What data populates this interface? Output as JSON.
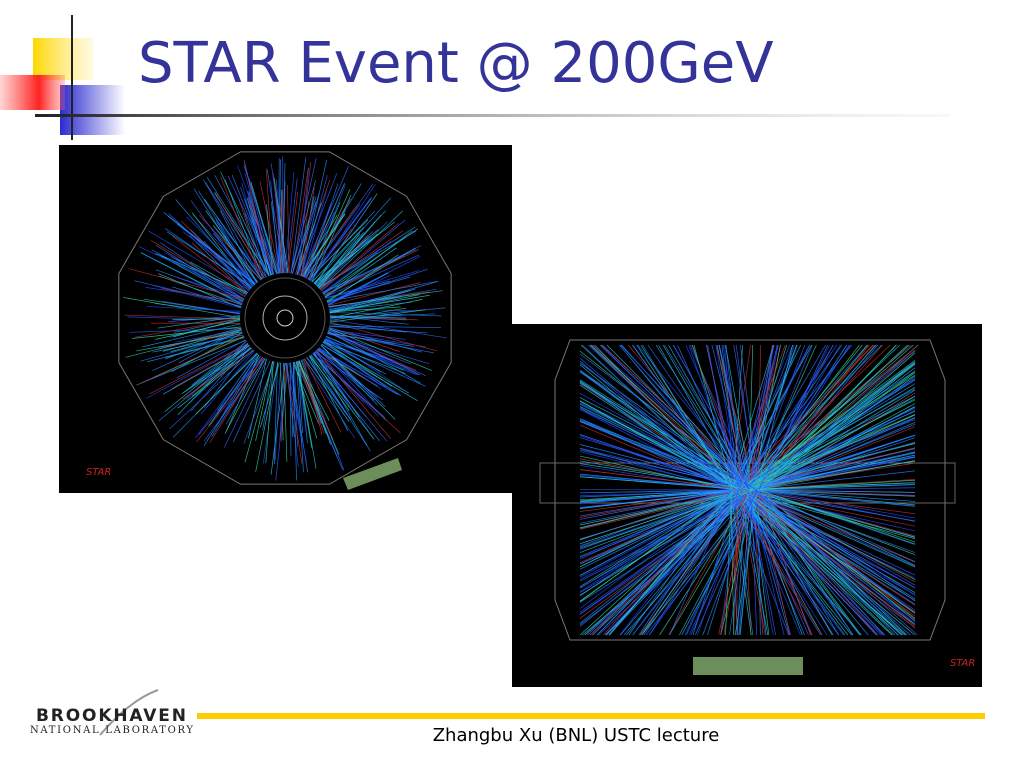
{
  "header": {
    "title": "STAR Event @ 200GeV"
  },
  "figures": [
    {
      "logo": "STAR"
    },
    {
      "logo": "STAR"
    }
  ],
  "footer": {
    "text": "Zhangbu Xu (BNL) USTC lecture",
    "logo": {
      "name": "BROOKHAVEN",
      "subtitle": "NATIONAL LABORATORY"
    }
  }
}
